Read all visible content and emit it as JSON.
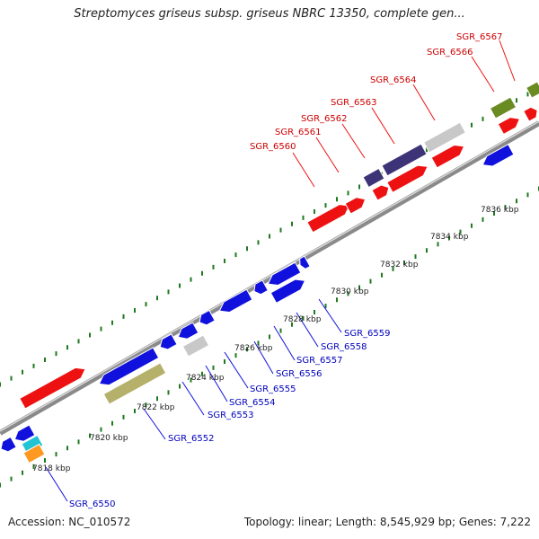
{
  "title": "Streptomyces griseus subsp. griseus NBRC 13350, complete gen...",
  "footer": {
    "accession": "Accession: NC_010572",
    "summary": "Topology: linear; Length: 8,545,929 bp; Genes: 7,222"
  },
  "colors": {
    "red": "#ee1111",
    "blue": "#1111dd",
    "navy": "#3d3477",
    "gray": "#c8c8c8",
    "olive": "#6a8a22",
    "khaki": "#b5b06a",
    "cyan": "#22c4d4",
    "orange": "#ff9922",
    "backbone": "#8a8a8a",
    "tick": "#1e7a1e",
    "red_label": "#cc0000",
    "blue_label": "#0000bb"
  },
  "scale_labels": [
    "7818 kbp",
    "7820 kbp",
    "7822 kbp",
    "7824 kbp",
    "7826 kbp",
    "7828 kbp",
    "7830 kbp",
    "7832 kbp",
    "7834 kbp",
    "7836 kbp"
  ],
  "gene_labels_top": [
    "SGR_6560",
    "SGR_6561",
    "SGR_6562",
    "SGR_6563",
    "SGR_6564",
    "SGR_6566",
    "SGR_6567"
  ],
  "gene_labels_bottom": [
    "SGR_6550",
    "SGR_6552",
    "SGR_6553",
    "SGR_6554",
    "SGR_6555",
    "SGR_6556",
    "SGR_6557",
    "SGR_6558",
    "SGR_6559"
  ]
}
